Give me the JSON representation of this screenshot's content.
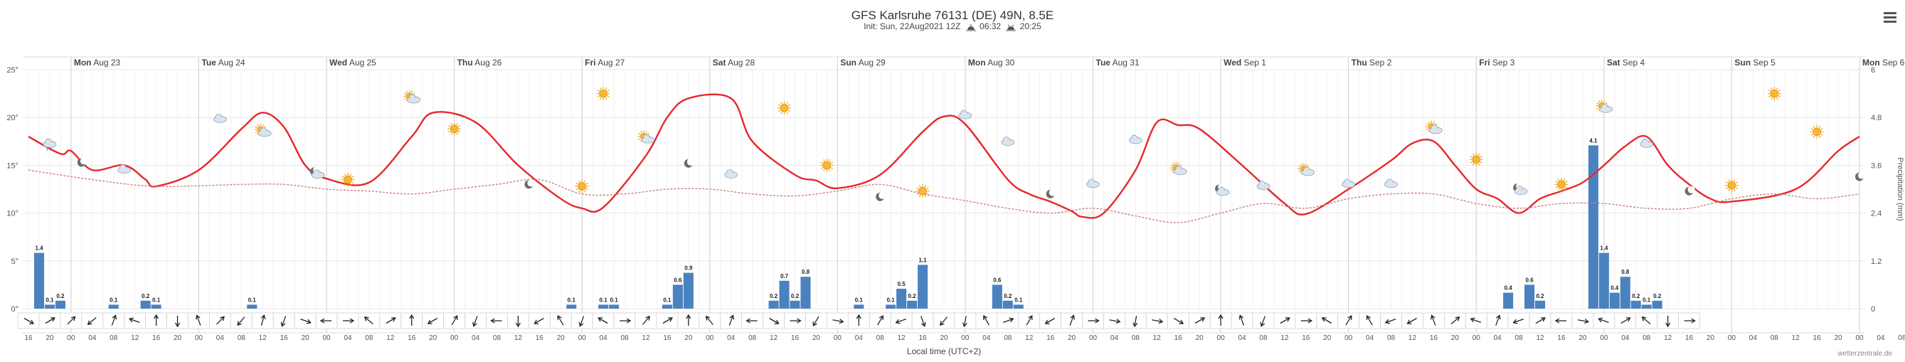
{
  "header": {
    "title": "GFS Karlsruhe 76131 (DE) 49N, 8.5E",
    "init": "Init: Sun, 22Aug2021 12Z",
    "sunrise": "06:32",
    "sunset": "20:25",
    "sunrise_icon": "sunrise-icon",
    "sunset_icon": "sunset-icon",
    "menu_icon": "hamburger-menu-icon"
  },
  "footer": {
    "xlabel": "Local time (UTC+2)",
    "credit": "wetterzentrale.de"
  },
  "chart_data": {
    "type": "line",
    "title": "GFS Karlsruhe 76131 (DE) 49N, 8.5E",
    "xlabel": "Local time (UTC+2)",
    "ylabel_left": "°",
    "ylabel_right": "Precipitation (mm)",
    "ylim_left": [
      0,
      25
    ],
    "ylim_right": [
      0,
      6
    ],
    "yticks_left": [
      "0°",
      "5°",
      "10°",
      "15°",
      "20°",
      "25°"
    ],
    "yticks_right": [
      "0",
      "1.2",
      "2.4",
      "3.6",
      "4.8",
      "6"
    ],
    "x_start_hour": 16,
    "x_step_hours": 2,
    "x_end_step": 172,
    "days": [
      "Mon Aug 23",
      "Tue Aug 24",
      "Wed Aug 25",
      "Thu Aug 26",
      "Fri Aug 27",
      "Sat Aug 28",
      "Sun Aug 29",
      "Mon Aug 30",
      "Tue Aug 31",
      "Wed Sep 1",
      "Thu Sep 2",
      "Fri Sep 3",
      "Sat Sep 4",
      "Sun Sep 5",
      "Mon Sep 6"
    ],
    "hour_ticks": [
      "16",
      "20",
      "00",
      "04",
      "08",
      "12",
      "16",
      "20",
      "00",
      "04",
      "08",
      "12",
      "16",
      "20",
      "00",
      "04",
      "08",
      "12",
      "16",
      "20",
      "00",
      "04",
      "08",
      "12",
      "16",
      "20",
      "00",
      "04",
      "08",
      "12",
      "16",
      "20",
      "00",
      "04",
      "08",
      "12",
      "16",
      "20",
      "00",
      "04",
      "08",
      "12",
      "16",
      "20",
      "00",
      "04",
      "08",
      "12",
      "16",
      "20",
      "00",
      "04",
      "08",
      "12",
      "16",
      "20",
      "00",
      "04",
      "08",
      "12",
      "16",
      "20",
      "00",
      "04",
      "08",
      "12",
      "16",
      "20",
      "00",
      "04",
      "08",
      "12",
      "16",
      "20",
      "00",
      "04",
      "08",
      "12",
      "16",
      "20",
      "00",
      "04",
      "08",
      "12",
      "16",
      "20",
      "00",
      "04",
      "08"
    ],
    "series": [
      {
        "name": "Temperature",
        "color": "#e8262b",
        "points": [
          [
            0,
            18
          ],
          [
            3,
            16.2
          ],
          [
            4,
            16.5
          ],
          [
            6,
            14.5
          ],
          [
            9,
            15
          ],
          [
            11,
            13.5
          ],
          [
            12,
            12.8
          ],
          [
            16,
            14.5
          ],
          [
            20,
            18.8
          ],
          [
            22,
            20.5
          ],
          [
            24,
            19
          ],
          [
            26,
            15
          ],
          [
            28,
            13.6
          ],
          [
            32,
            13.2
          ],
          [
            36,
            18
          ],
          [
            38,
            20.5
          ],
          [
            42,
            19.5
          ],
          [
            46,
            15
          ],
          [
            50,
            11.5
          ],
          [
            52,
            10.5
          ],
          [
            54,
            10.6
          ],
          [
            58,
            16
          ],
          [
            60,
            20
          ],
          [
            62,
            22
          ],
          [
            66,
            22
          ],
          [
            68,
            17.5
          ],
          [
            72,
            14
          ],
          [
            74,
            13.4
          ],
          [
            76,
            12.6
          ],
          [
            80,
            14
          ],
          [
            84,
            18.5
          ],
          [
            86,
            20.1
          ],
          [
            88,
            19.3
          ],
          [
            92,
            13.5
          ],
          [
            94,
            12
          ],
          [
            96,
            11.2
          ],
          [
            98,
            10.2
          ],
          [
            99,
            9.6
          ],
          [
            101,
            10
          ],
          [
            104,
            14.5
          ],
          [
            106,
            19.5
          ],
          [
            108,
            19.2
          ],
          [
            110,
            18.8
          ],
          [
            114,
            15
          ],
          [
            118,
            11
          ],
          [
            120,
            9.9
          ],
          [
            124,
            12.5
          ],
          [
            128,
            15.5
          ],
          [
            130,
            17.3
          ],
          [
            132,
            17.5
          ],
          [
            134,
            15
          ],
          [
            136,
            12.5
          ],
          [
            138,
            11.5
          ],
          [
            140,
            10
          ],
          [
            142,
            11.5
          ],
          [
            144,
            12.3
          ],
          [
            146,
            13.2
          ],
          [
            148,
            15
          ],
          [
            150,
            17
          ],
          [
            152,
            18
          ],
          [
            154,
            15
          ],
          [
            156,
            13
          ],
          [
            158,
            11.5
          ],
          [
            160,
            11.2
          ],
          [
            166,
            12.5
          ],
          [
            170,
            16.5
          ],
          [
            172,
            18
          ]
        ]
      },
      {
        "name": "Dew point",
        "color": "#c97a7a",
        "dashed": true,
        "points": [
          [
            0,
            14.5
          ],
          [
            6,
            13.5
          ],
          [
            12,
            12.8
          ],
          [
            20,
            13
          ],
          [
            24,
            13
          ],
          [
            28,
            12.5
          ],
          [
            32,
            12.3
          ],
          [
            36,
            12
          ],
          [
            40,
            12.5
          ],
          [
            44,
            13
          ],
          [
            48,
            13.5
          ],
          [
            52,
            12
          ],
          [
            56,
            12
          ],
          [
            60,
            12.5
          ],
          [
            64,
            12.5
          ],
          [
            68,
            12
          ],
          [
            72,
            11.8
          ],
          [
            76,
            12.3
          ],
          [
            80,
            13
          ],
          [
            84,
            12
          ],
          [
            88,
            11.3
          ],
          [
            92,
            10.5
          ],
          [
            96,
            10
          ],
          [
            100,
            10.5
          ],
          [
            104,
            9.7
          ],
          [
            108,
            9
          ],
          [
            112,
            10
          ],
          [
            116,
            11
          ],
          [
            120,
            10.5
          ],
          [
            124,
            11.5
          ],
          [
            128,
            12
          ],
          [
            132,
            12
          ],
          [
            136,
            11
          ],
          [
            140,
            10.5
          ],
          [
            144,
            11
          ],
          [
            148,
            11
          ],
          [
            152,
            10.5
          ],
          [
            156,
            10.5
          ],
          [
            160,
            11.5
          ],
          [
            164,
            12
          ],
          [
            168,
            11.5
          ],
          [
            172,
            12
          ]
        ]
      }
    ],
    "precipitation": {
      "color": "#4a82c0",
      "bars": [
        [
          1,
          1.4
        ],
        [
          2,
          0.1
        ],
        [
          3,
          0.2
        ],
        [
          8,
          0.1
        ],
        [
          11,
          0.2
        ],
        [
          12,
          0.1
        ],
        [
          21,
          0.1
        ],
        [
          51,
          0.1
        ],
        [
          54,
          0.1
        ],
        [
          55,
          0.1
        ],
        [
          60,
          0.1
        ],
        [
          61,
          0.6
        ],
        [
          62,
          0.9
        ],
        [
          70,
          0.2
        ],
        [
          71,
          0.7
        ],
        [
          72,
          0.2
        ],
        [
          73,
          0.8
        ],
        [
          78,
          0.1
        ],
        [
          81,
          0.1
        ],
        [
          82,
          0.5
        ],
        [
          83,
          0.2
        ],
        [
          84,
          1.1
        ],
        [
          91,
          0.6
        ],
        [
          92,
          0.2
        ],
        [
          93,
          0.1
        ],
        [
          139,
          0.4
        ],
        [
          141,
          0.6
        ],
        [
          142,
          0.2
        ],
        [
          147,
          4.1
        ],
        [
          148,
          1.4
        ],
        [
          149,
          0.4
        ],
        [
          150,
          0.8
        ],
        [
          151,
          0.2
        ],
        [
          152,
          0.1
        ],
        [
          153,
          0.2
        ]
      ]
    },
    "wind_directions_deg": [
      120,
      60,
      45,
      230,
      20,
      290,
      0,
      180,
      340,
      45,
      220,
      15,
      200,
      110,
      270,
      90,
      310,
      60,
      0,
      240,
      30,
      200,
      270,
      180,
      240,
      330,
      200,
      300,
      90,
      40,
      60,
      0,
      320,
      20,
      270,
      120,
      90,
      210,
      100,
      0,
      30,
      250,
      160,
      220,
      190,
      330,
      70,
      30,
      240,
      20,
      90,
      100,
      190,
      100,
      120,
      60,
      0,
      340,
      200,
      60,
      90,
      300,
      30,
      330,
      250,
      240,
      340,
      50,
      290,
      20,
      250,
      60,
      270,
      100,
      290,
      60,
      310,
      180,
      90
    ]
  },
  "weather_icons": [
    {
      "step": 2,
      "value": 17.2,
      "type": "rain-cloud-icon"
    },
    {
      "step": 5,
      "value": 15.3,
      "type": "moon-icon"
    },
    {
      "step": 9,
      "value": 14.5,
      "type": "cloud-icon"
    },
    {
      "step": 18,
      "value": 19.8,
      "type": "cloud-icon"
    },
    {
      "step": 22,
      "value": 18.5,
      "type": "sun-cloud-icon"
    },
    {
      "step": 27,
      "value": 14.2,
      "type": "moon-cloud-icon"
    },
    {
      "step": 30,
      "value": 13.5,
      "type": "sun-icon"
    },
    {
      "step": 36,
      "value": 22,
      "type": "sun-cloud-icon"
    },
    {
      "step": 40,
      "value": 18.8,
      "type": "sun-icon"
    },
    {
      "step": 47,
      "value": 13,
      "type": "moon-icon"
    },
    {
      "step": 52,
      "value": 12.8,
      "type": "sun-icon"
    },
    {
      "step": 54,
      "value": 22.5,
      "type": "sun-icon"
    },
    {
      "step": 58,
      "value": 17.8,
      "type": "sun-cloud-icon"
    },
    {
      "step": 62,
      "value": 15.2,
      "type": "moon-icon"
    },
    {
      "step": 66,
      "value": 14,
      "type": "cloud-icon"
    },
    {
      "step": 71,
      "value": 21,
      "type": "sun-icon"
    },
    {
      "step": 75,
      "value": 15,
      "type": "sun-icon"
    },
    {
      "step": 80,
      "value": 11.7,
      "type": "moon-icon"
    },
    {
      "step": 84,
      "value": 12.3,
      "type": "sun-icon"
    },
    {
      "step": 88,
      "value": 20.2,
      "type": "cloud-icon"
    },
    {
      "step": 92,
      "value": 17.4,
      "type": "cloud-icon"
    },
    {
      "step": 96,
      "value": 12,
      "type": "moon-icon"
    },
    {
      "step": 100,
      "value": 13,
      "type": "cloud-icon"
    },
    {
      "step": 104,
      "value": 17.6,
      "type": "cloud-icon"
    },
    {
      "step": 108,
      "value": 14.5,
      "type": "sun-cloud-icon"
    },
    {
      "step": 112,
      "value": 12.4,
      "type": "moon-cloud-icon"
    },
    {
      "step": 116,
      "value": 12.8,
      "type": "cloud-icon"
    },
    {
      "step": 120,
      "value": 14.4,
      "type": "sun-cloud-icon"
    },
    {
      "step": 124,
      "value": 13,
      "type": "cloud-icon"
    },
    {
      "step": 128,
      "value": 13,
      "type": "cloud-icon"
    },
    {
      "step": 132,
      "value": 18.8,
      "type": "sun-cloud-icon"
    },
    {
      "step": 136,
      "value": 15.6,
      "type": "sun-icon"
    },
    {
      "step": 140,
      "value": 12.5,
      "type": "moon-cloud-icon"
    },
    {
      "step": 144,
      "value": 13,
      "type": "sun-icon"
    },
    {
      "step": 148,
      "value": 21,
      "type": "sun-cloud-icon"
    },
    {
      "step": 152,
      "value": 17.2,
      "type": "cloud-icon"
    },
    {
      "step": 156,
      "value": 12.3,
      "type": "moon-icon"
    },
    {
      "step": 160,
      "value": 12.9,
      "type": "sun-icon"
    },
    {
      "step": 164,
      "value": 22.5,
      "type": "sun-icon"
    },
    {
      "step": 168,
      "value": 18.5,
      "type": "sun-icon"
    },
    {
      "step": 172,
      "value": 13.8,
      "type": "moon-icon"
    }
  ]
}
